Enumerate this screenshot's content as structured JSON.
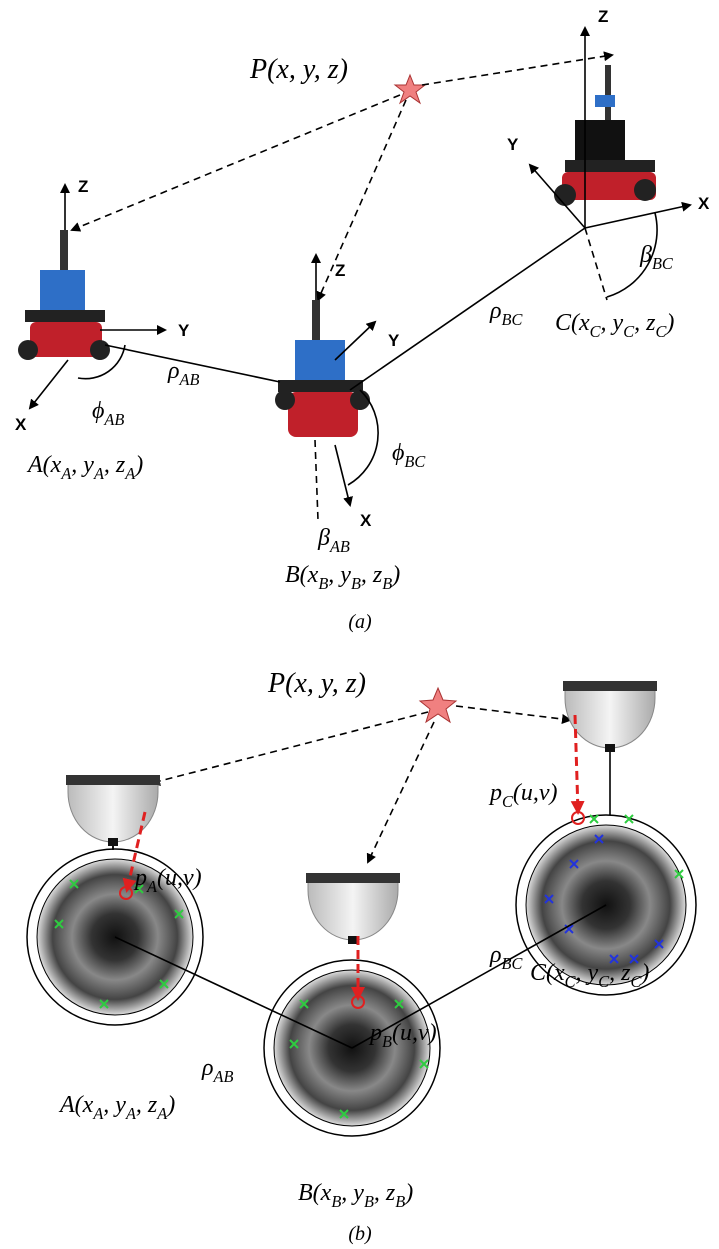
{
  "panel_a": {
    "target": "P(x, y, z)",
    "axes_a": [
      "Z",
      "Y",
      "X"
    ],
    "axes_b": [
      "Z",
      "Y",
      "X"
    ],
    "axes_c": [
      "Z",
      "Y",
      "X"
    ],
    "distance_ab": [
      "ρ",
      "AB"
    ],
    "distance_bc": [
      "ρ",
      "BC"
    ],
    "angle_phi_ab": [
      "ϕ",
      "AB"
    ],
    "angle_phi_bc": [
      "ϕ",
      "BC"
    ],
    "angle_beta_ab": [
      "β",
      "AB"
    ],
    "angle_beta_bc": [
      "β",
      "BC"
    ],
    "robot_a": [
      "A(x",
      "A",
      ", y",
      "A",
      ", z",
      "A",
      ")"
    ],
    "robot_b": [
      "B(x",
      "B",
      ", y",
      "B",
      ", z",
      "B",
      ")"
    ],
    "robot_c": [
      "C(x",
      "C",
      ", y",
      "C",
      ", z",
      "C",
      ")"
    ],
    "caption": "(a)"
  },
  "panel_b": {
    "target": "P(x, y, z)",
    "pixel_a": [
      "p",
      "A",
      "(u,v)"
    ],
    "pixel_b": [
      "p",
      "B",
      "(u,v)"
    ],
    "pixel_c": [
      "p",
      "C",
      "(u,v)"
    ],
    "distance_ab": [
      "ρ",
      "AB"
    ],
    "distance_bc": [
      "ρ",
      "BC"
    ],
    "robot_a": [
      "A(x",
      "A",
      ", y",
      "A",
      ", z",
      "A",
      ")"
    ],
    "robot_b": [
      "B(x",
      "B",
      ", y",
      "B",
      ", z",
      "B",
      ")"
    ],
    "robot_c": [
      "C(x",
      "C",
      ", y",
      "C",
      ", z",
      "C",
      ")"
    ],
    "caption": "(b)"
  }
}
